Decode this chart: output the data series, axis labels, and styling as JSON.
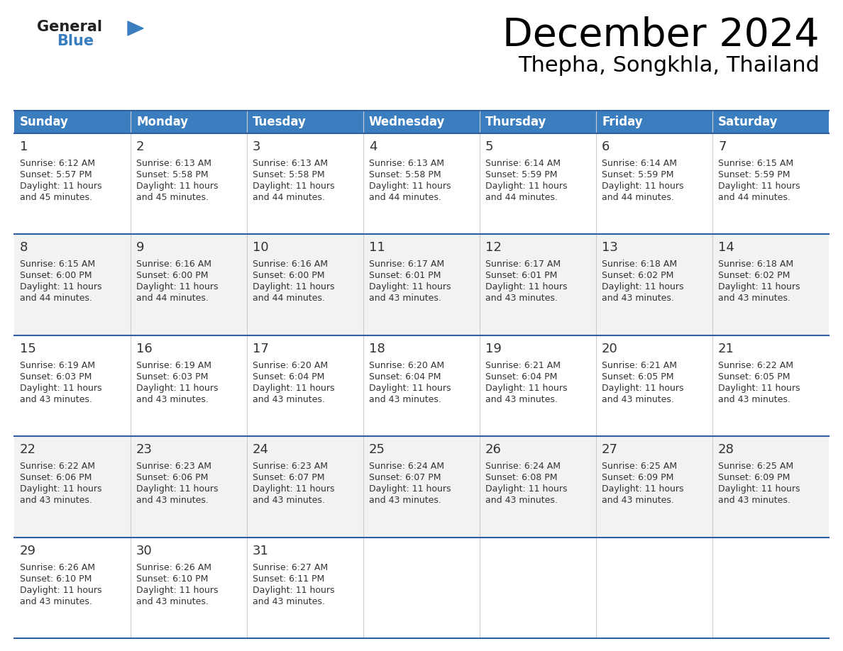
{
  "title": "December 2024",
  "subtitle": "Thepha, Songkhla, Thailand",
  "days_of_week": [
    "Sunday",
    "Monday",
    "Tuesday",
    "Wednesday",
    "Thursday",
    "Friday",
    "Saturday"
  ],
  "header_bg": "#3a7ebf",
  "header_text": "#ffffff",
  "row_bg_white": "#ffffff",
  "row_bg_gray": "#f2f2f2",
  "separator_color": "#2e5fa3",
  "text_color": "#333333",
  "logo_general_color": "#222222",
  "logo_blue_color": "#3a7ebf",
  "logo_triangle_color": "#3a7ebf",
  "calendar_data": [
    {
      "day": 1,
      "col": 0,
      "row": 0,
      "sunrise": "6:12 AM",
      "sunset": "5:57 PM",
      "daylight": "11 hours and 45 minutes."
    },
    {
      "day": 2,
      "col": 1,
      "row": 0,
      "sunrise": "6:13 AM",
      "sunset": "5:58 PM",
      "daylight": "11 hours and 45 minutes."
    },
    {
      "day": 3,
      "col": 2,
      "row": 0,
      "sunrise": "6:13 AM",
      "sunset": "5:58 PM",
      "daylight": "11 hours and 44 minutes."
    },
    {
      "day": 4,
      "col": 3,
      "row": 0,
      "sunrise": "6:13 AM",
      "sunset": "5:58 PM",
      "daylight": "11 hours and 44 minutes."
    },
    {
      "day": 5,
      "col": 4,
      "row": 0,
      "sunrise": "6:14 AM",
      "sunset": "5:59 PM",
      "daylight": "11 hours and 44 minutes."
    },
    {
      "day": 6,
      "col": 5,
      "row": 0,
      "sunrise": "6:14 AM",
      "sunset": "5:59 PM",
      "daylight": "11 hours and 44 minutes."
    },
    {
      "day": 7,
      "col": 6,
      "row": 0,
      "sunrise": "6:15 AM",
      "sunset": "5:59 PM",
      "daylight": "11 hours and 44 minutes."
    },
    {
      "day": 8,
      "col": 0,
      "row": 1,
      "sunrise": "6:15 AM",
      "sunset": "6:00 PM",
      "daylight": "11 hours and 44 minutes."
    },
    {
      "day": 9,
      "col": 1,
      "row": 1,
      "sunrise": "6:16 AM",
      "sunset": "6:00 PM",
      "daylight": "11 hours and 44 minutes."
    },
    {
      "day": 10,
      "col": 2,
      "row": 1,
      "sunrise": "6:16 AM",
      "sunset": "6:00 PM",
      "daylight": "11 hours and 44 minutes."
    },
    {
      "day": 11,
      "col": 3,
      "row": 1,
      "sunrise": "6:17 AM",
      "sunset": "6:01 PM",
      "daylight": "11 hours and 43 minutes."
    },
    {
      "day": 12,
      "col": 4,
      "row": 1,
      "sunrise": "6:17 AM",
      "sunset": "6:01 PM",
      "daylight": "11 hours and 43 minutes."
    },
    {
      "day": 13,
      "col": 5,
      "row": 1,
      "sunrise": "6:18 AM",
      "sunset": "6:02 PM",
      "daylight": "11 hours and 43 minutes."
    },
    {
      "day": 14,
      "col": 6,
      "row": 1,
      "sunrise": "6:18 AM",
      "sunset": "6:02 PM",
      "daylight": "11 hours and 43 minutes."
    },
    {
      "day": 15,
      "col": 0,
      "row": 2,
      "sunrise": "6:19 AM",
      "sunset": "6:03 PM",
      "daylight": "11 hours and 43 minutes."
    },
    {
      "day": 16,
      "col": 1,
      "row": 2,
      "sunrise": "6:19 AM",
      "sunset": "6:03 PM",
      "daylight": "11 hours and 43 minutes."
    },
    {
      "day": 17,
      "col": 2,
      "row": 2,
      "sunrise": "6:20 AM",
      "sunset": "6:04 PM",
      "daylight": "11 hours and 43 minutes."
    },
    {
      "day": 18,
      "col": 3,
      "row": 2,
      "sunrise": "6:20 AM",
      "sunset": "6:04 PM",
      "daylight": "11 hours and 43 minutes."
    },
    {
      "day": 19,
      "col": 4,
      "row": 2,
      "sunrise": "6:21 AM",
      "sunset": "6:04 PM",
      "daylight": "11 hours and 43 minutes."
    },
    {
      "day": 20,
      "col": 5,
      "row": 2,
      "sunrise": "6:21 AM",
      "sunset": "6:05 PM",
      "daylight": "11 hours and 43 minutes."
    },
    {
      "day": 21,
      "col": 6,
      "row": 2,
      "sunrise": "6:22 AM",
      "sunset": "6:05 PM",
      "daylight": "11 hours and 43 minutes."
    },
    {
      "day": 22,
      "col": 0,
      "row": 3,
      "sunrise": "6:22 AM",
      "sunset": "6:06 PM",
      "daylight": "11 hours and 43 minutes."
    },
    {
      "day": 23,
      "col": 1,
      "row": 3,
      "sunrise": "6:23 AM",
      "sunset": "6:06 PM",
      "daylight": "11 hours and 43 minutes."
    },
    {
      "day": 24,
      "col": 2,
      "row": 3,
      "sunrise": "6:23 AM",
      "sunset": "6:07 PM",
      "daylight": "11 hours and 43 minutes."
    },
    {
      "day": 25,
      "col": 3,
      "row": 3,
      "sunrise": "6:24 AM",
      "sunset": "6:07 PM",
      "daylight": "11 hours and 43 minutes."
    },
    {
      "day": 26,
      "col": 4,
      "row": 3,
      "sunrise": "6:24 AM",
      "sunset": "6:08 PM",
      "daylight": "11 hours and 43 minutes."
    },
    {
      "day": 27,
      "col": 5,
      "row": 3,
      "sunrise": "6:25 AM",
      "sunset": "6:09 PM",
      "daylight": "11 hours and 43 minutes."
    },
    {
      "day": 28,
      "col": 6,
      "row": 3,
      "sunrise": "6:25 AM",
      "sunset": "6:09 PM",
      "daylight": "11 hours and 43 minutes."
    },
    {
      "day": 29,
      "col": 0,
      "row": 4,
      "sunrise": "6:26 AM",
      "sunset": "6:10 PM",
      "daylight": "11 hours and 43 minutes."
    },
    {
      "day": 30,
      "col": 1,
      "row": 4,
      "sunrise": "6:26 AM",
      "sunset": "6:10 PM",
      "daylight": "11 hours and 43 minutes."
    },
    {
      "day": 31,
      "col": 2,
      "row": 4,
      "sunrise": "6:27 AM",
      "sunset": "6:11 PM",
      "daylight": "11 hours and 43 minutes."
    }
  ]
}
